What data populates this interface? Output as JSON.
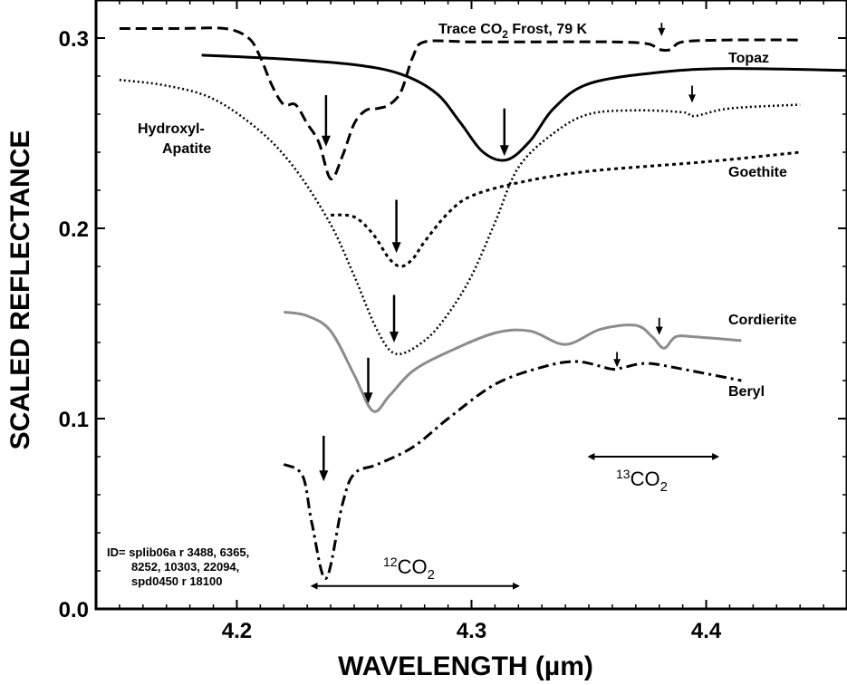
{
  "chart_data": {
    "type": "line",
    "title": "",
    "xlabel": "WAVELENGTH (µm)",
    "ylabel": "SCALED REFLECTANCE",
    "xlim": [
      4.14,
      4.46
    ],
    "ylim": [
      0.0,
      0.32
    ],
    "xticks": [
      4.2,
      4.3,
      4.4
    ],
    "xtick_labels": [
      "4.2",
      "4.3",
      "4.4"
    ],
    "yticks": [
      0.0,
      0.1,
      0.2,
      0.3
    ],
    "ytick_labels": [
      "0.0",
      "0.1",
      "0.2",
      "0.3"
    ],
    "grid": false,
    "legend": "none (series labelled directly on plot)",
    "series": [
      {
        "name": "Trace CO2 Frost, 79 K",
        "label_text": "Trace CO",
        "label_sub": "2",
        "label_after": " Frost, 79 K",
        "style": "dashed",
        "color": "#000000",
        "x": [
          4.15,
          4.175,
          4.195,
          4.205,
          4.21,
          4.215,
          4.22,
          4.225,
          4.23,
          4.235,
          4.24,
          4.245,
          4.25,
          4.255,
          4.26,
          4.265,
          4.27,
          4.275,
          4.28,
          4.3,
          4.33,
          4.36,
          4.375,
          4.38,
          4.385,
          4.39,
          4.41,
          4.44
        ],
        "y": [
          0.305,
          0.305,
          0.305,
          0.3,
          0.29,
          0.275,
          0.265,
          0.265,
          0.255,
          0.245,
          0.226,
          0.238,
          0.255,
          0.262,
          0.263,
          0.265,
          0.272,
          0.29,
          0.298,
          0.298,
          0.298,
          0.298,
          0.297,
          0.294,
          0.294,
          0.298,
          0.299,
          0.299
        ]
      },
      {
        "name": "Topaz",
        "label_text": "Topaz",
        "style": "solid",
        "color": "#000000",
        "x": [
          4.185,
          4.22,
          4.25,
          4.27,
          4.285,
          4.295,
          4.305,
          4.315,
          4.325,
          4.335,
          4.35,
          4.38,
          4.41,
          4.46
        ],
        "y": [
          0.291,
          0.289,
          0.286,
          0.281,
          0.271,
          0.256,
          0.24,
          0.236,
          0.246,
          0.263,
          0.276,
          0.282,
          0.284,
          0.283
        ]
      },
      {
        "name": "Hydroxyl-Apatite",
        "label_text": "Hydroxyl-",
        "label_text2": "Apatite",
        "style": "dotted",
        "color": "#000000",
        "x": [
          4.15,
          4.17,
          4.19,
          4.21,
          4.225,
          4.24,
          4.25,
          4.26,
          4.268,
          4.28,
          4.29,
          4.3,
          4.31,
          4.32,
          4.335,
          4.35,
          4.37,
          4.39,
          4.395,
          4.41,
          4.44
        ],
        "y": [
          0.278,
          0.275,
          0.268,
          0.251,
          0.231,
          0.202,
          0.175,
          0.146,
          0.134,
          0.141,
          0.155,
          0.175,
          0.203,
          0.232,
          0.25,
          0.26,
          0.262,
          0.261,
          0.259,
          0.263,
          0.265
        ]
      },
      {
        "name": "Goethite",
        "label_text": "Goethite",
        "style": "dotted",
        "color": "#000000",
        "x": [
          4.24,
          4.25,
          4.258,
          4.265,
          4.27,
          4.275,
          4.28,
          4.29,
          4.3,
          4.32,
          4.35,
          4.4,
          4.44
        ],
        "y": [
          0.207,
          0.206,
          0.197,
          0.184,
          0.18,
          0.184,
          0.193,
          0.208,
          0.217,
          0.224,
          0.23,
          0.235,
          0.24
        ]
      },
      {
        "name": "Cordierite",
        "label_text": "Cordierite",
        "style": "solid",
        "color": "#8c8c8c",
        "x": [
          4.22,
          4.23,
          4.24,
          4.25,
          4.258,
          4.265,
          4.275,
          4.29,
          4.31,
          4.325,
          4.34,
          4.355,
          4.37,
          4.377,
          4.382,
          4.387,
          4.395,
          4.415
        ],
        "y": [
          0.156,
          0.154,
          0.146,
          0.123,
          0.104,
          0.112,
          0.125,
          0.135,
          0.145,
          0.146,
          0.139,
          0.147,
          0.149,
          0.143,
          0.137,
          0.143,
          0.143,
          0.141
        ]
      },
      {
        "name": "Beryl",
        "label_text": "Beryl",
        "style": "dash-dot",
        "color": "#000000",
        "x": [
          4.22,
          4.228,
          4.232,
          4.238,
          4.245,
          4.25,
          4.26,
          4.275,
          4.29,
          4.31,
          4.33,
          4.345,
          4.36,
          4.365,
          4.375,
          4.39,
          4.415
        ],
        "y": [
          0.076,
          0.07,
          0.045,
          0.016,
          0.055,
          0.071,
          0.076,
          0.085,
          0.1,
          0.118,
          0.127,
          0.13,
          0.126,
          0.127,
          0.129,
          0.126,
          0.12
        ]
      }
    ],
    "annotations": {
      "co2_12_sup": "12",
      "co2_12_base": "CO",
      "co2_12_sub": "2",
      "co2_12_range_x": [
        4.232,
        4.32
      ],
      "co2_12_y": 0.012,
      "co2_13_sup": "13",
      "co2_13_base": "CO",
      "co2_13_sub": "2",
      "co2_13_range_x": [
        4.35,
        4.405
      ],
      "co2_13_y": 0.08,
      "id_lines": [
        "ID= splib06a r 3488, 6365,",
        "8252, 10303, 22094,",
        "spd0450 r 18100"
      ]
    },
    "arrows": [
      {
        "x": 4.238,
        "y_from": 0.27,
        "y_to": 0.243,
        "size": "large"
      },
      {
        "x": 4.381,
        "y_from": 0.308,
        "y_to": 0.301,
        "size": "small"
      },
      {
        "x": 4.314,
        "y_from": 0.263,
        "y_to": 0.238,
        "size": "large"
      },
      {
        "x": 4.394,
        "y_from": 0.275,
        "y_to": 0.266,
        "size": "small"
      },
      {
        "x": 4.268,
        "y_from": 0.215,
        "y_to": 0.187,
        "size": "large"
      },
      {
        "x": 4.267,
        "y_from": 0.165,
        "y_to": 0.14,
        "size": "large"
      },
      {
        "x": 4.256,
        "y_from": 0.132,
        "y_to": 0.108,
        "size": "large"
      },
      {
        "x": 4.38,
        "y_from": 0.153,
        "y_to": 0.144,
        "size": "small"
      },
      {
        "x": 4.362,
        "y_from": 0.135,
        "y_to": 0.127,
        "size": "small"
      },
      {
        "x": 4.237,
        "y_from": 0.091,
        "y_to": 0.067,
        "size": "large"
      }
    ]
  }
}
